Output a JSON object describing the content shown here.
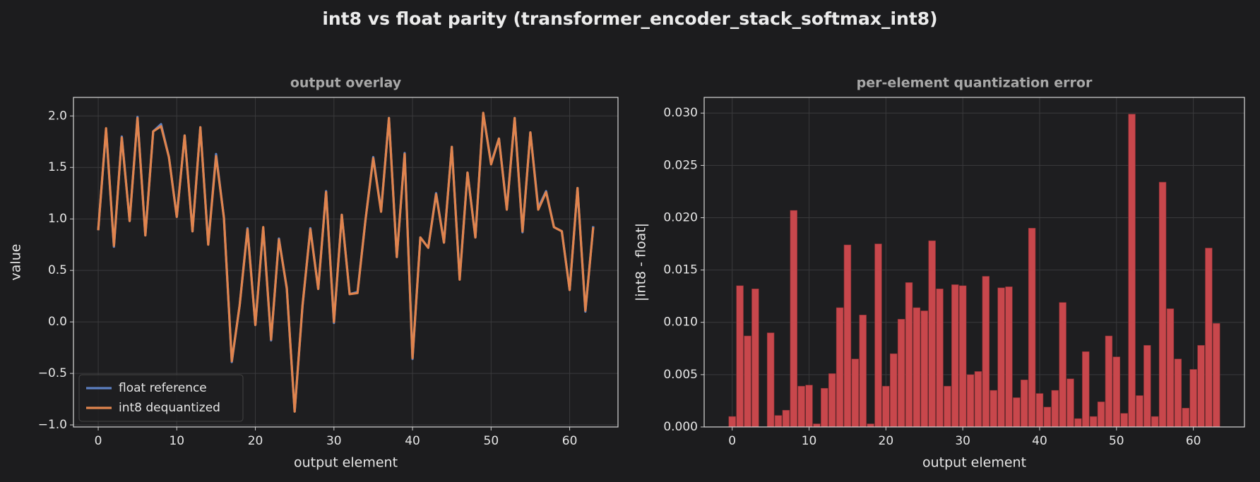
{
  "suptitle": "int8 vs float parity  (transformer_encoder_stack_softmax_int8)",
  "chart_data": [
    {
      "type": "line",
      "title": "output overlay",
      "x_label": "output element",
      "y_label": "value",
      "x": [
        0,
        1,
        2,
        3,
        4,
        5,
        6,
        7,
        8,
        9,
        10,
        11,
        12,
        13,
        14,
        15,
        16,
        17,
        18,
        19,
        20,
        21,
        22,
        23,
        24,
        25,
        26,
        27,
        28,
        29,
        30,
        31,
        32,
        33,
        34,
        35,
        36,
        37,
        38,
        39,
        40,
        41,
        42,
        43,
        44,
        45,
        46,
        47,
        48,
        49,
        50,
        51,
        52,
        53,
        54,
        55,
        56,
        57,
        58,
        59,
        60,
        61,
        62,
        63
      ],
      "series": [
        {
          "name": "float reference",
          "color": "#5b7fc0",
          "values": [
            0.89,
            1.87,
            0.73,
            1.8,
            0.98,
            1.99,
            0.84,
            1.85,
            1.92,
            1.6,
            1.02,
            1.81,
            0.88,
            1.89,
            0.76,
            1.63,
            1.01,
            -0.39,
            0.16,
            0.91,
            -0.03,
            0.91,
            -0.18,
            0.81,
            0.32,
            -0.87,
            0.15,
            0.91,
            0.32,
            1.27,
            -0.01,
            1.04,
            0.27,
            0.29,
            0.98,
            1.6,
            1.08,
            1.98,
            0.63,
            1.64,
            -0.36,
            0.82,
            0.72,
            1.25,
            0.77,
            1.7,
            0.42,
            1.45,
            0.82,
            2.02,
            1.54,
            1.78,
            1.1,
            1.98,
            0.87,
            1.84,
            1.11,
            1.27,
            0.92,
            0.88,
            0.31,
            1.3,
            0.1,
            0.93
          ]
        },
        {
          "name": "int8 dequantized",
          "color": "#e0844e",
          "values": [
            0.89,
            1.88,
            0.74,
            1.79,
            0.98,
            1.98,
            0.84,
            1.85,
            1.9,
            1.6,
            1.02,
            1.81,
            0.88,
            1.89,
            0.75,
            1.61,
            1.01,
            -0.38,
            0.16,
            0.9,
            -0.03,
            0.92,
            -0.17,
            0.8,
            0.33,
            -0.87,
            0.16,
            0.9,
            0.32,
            1.26,
            0.0,
            1.04,
            0.27,
            0.28,
            0.98,
            1.59,
            1.07,
            1.98,
            0.63,
            1.63,
            -0.35,
            0.82,
            0.72,
            1.24,
            0.77,
            1.7,
            0.41,
            1.45,
            0.82,
            2.03,
            1.53,
            1.78,
            1.09,
            1.98,
            0.88,
            1.84,
            1.09,
            1.26,
            0.92,
            0.88,
            0.31,
            1.3,
            0.11,
            0.92
          ]
        }
      ],
      "xlim": [
        -3.15,
        66.15
      ],
      "ylim": [
        -1.02,
        2.18
      ],
      "xticks": [
        0,
        10,
        20,
        30,
        40,
        50,
        60
      ],
      "yticks": [
        {
          "value": -1.0,
          "label": "−1.0"
        },
        {
          "value": -0.5,
          "label": "−0.5"
        },
        {
          "value": 0.0,
          "label": "0.0"
        },
        {
          "value": 0.5,
          "label": "0.5"
        },
        {
          "value": 1.0,
          "label": "1.0"
        },
        {
          "value": 1.5,
          "label": "1.5"
        },
        {
          "value": 2.0,
          "label": "2.0"
        }
      ],
      "grid": true,
      "legend": "lower left"
    },
    {
      "type": "bar",
      "title": "per-element quantization error",
      "x_label": "output element",
      "y_label": "|int8 - float|",
      "color": "#c8474c",
      "x": [
        0,
        1,
        2,
        3,
        4,
        5,
        6,
        7,
        8,
        9,
        10,
        11,
        12,
        13,
        14,
        15,
        16,
        17,
        18,
        19,
        20,
        21,
        22,
        23,
        24,
        25,
        26,
        27,
        28,
        29,
        30,
        31,
        32,
        33,
        34,
        35,
        36,
        37,
        38,
        39,
        40,
        41,
        42,
        43,
        44,
        45,
        46,
        47,
        48,
        49,
        50,
        51,
        52,
        53,
        54,
        55,
        56,
        57,
        58,
        59,
        60,
        61,
        62,
        63
      ],
      "values": [
        0.001,
        0.0135,
        0.0087,
        0.0132,
        0.0,
        0.009,
        0.0011,
        0.0016,
        0.0207,
        0.0039,
        0.004,
        0.0003,
        0.0037,
        0.0051,
        0.0114,
        0.0174,
        0.0065,
        0.0107,
        0.0003,
        0.0175,
        0.0039,
        0.007,
        0.0103,
        0.0138,
        0.0114,
        0.0111,
        0.0178,
        0.0132,
        0.0039,
        0.0136,
        0.0135,
        0.005,
        0.0053,
        0.0144,
        0.0035,
        0.0133,
        0.0134,
        0.0028,
        0.0045,
        0.019,
        0.0032,
        0.0019,
        0.0035,
        0.0119,
        0.0046,
        0.0008,
        0.0072,
        0.001,
        0.0024,
        0.0087,
        0.0067,
        0.0013,
        0.0299,
        0.003,
        0.0078,
        0.001,
        0.0234,
        0.0113,
        0.0065,
        0.0018,
        0.0055,
        0.0078,
        0.0171,
        0.0099
      ],
      "xlim": [
        -3.65,
        66.65
      ],
      "ylim": [
        0,
        0.0315
      ],
      "xticks": [
        0,
        10,
        20,
        30,
        40,
        50,
        60
      ],
      "yticks": [
        {
          "value": 0,
          "label": "0.000"
        },
        {
          "value": 0.005,
          "label": "0.005"
        },
        {
          "value": 0.01,
          "label": "0.010"
        },
        {
          "value": 0.015,
          "label": "0.015"
        },
        {
          "value": 0.02,
          "label": "0.020"
        },
        {
          "value": 0.025,
          "label": "0.025"
        },
        {
          "value": 0.03,
          "label": "0.030"
        }
      ],
      "grid": true
    }
  ]
}
